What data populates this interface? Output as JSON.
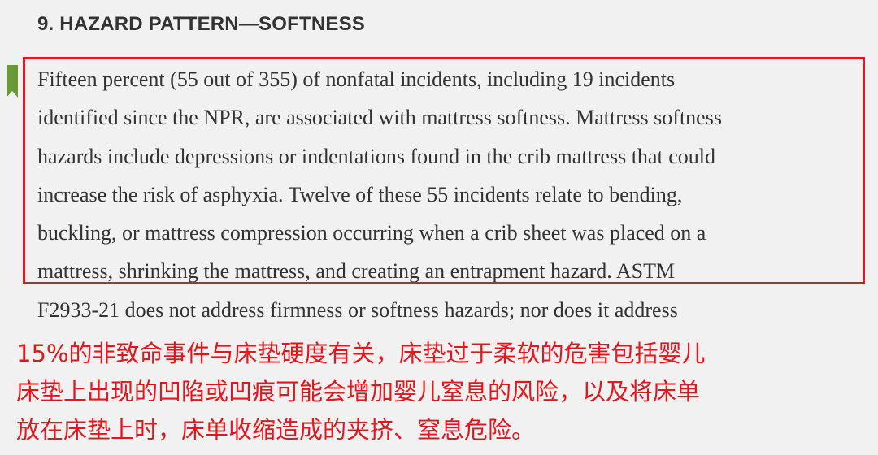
{
  "heading": "9. HAZARD PATTERN—SOFTNESS",
  "paragraph": {
    "lines": [
      "Fifteen percent (55 out of 355) of nonfatal incidents, including 19 incidents",
      "identified since the NPR, are associated with mattress softness. Mattress softness",
      "hazards include depressions or indentations found in the crib mattress that could",
      "increase the risk of asphyxia. Twelve of these 55 incidents relate to bending,",
      "buckling, or mattress compression occurring when a crib sheet was placed on a",
      "mattress, shrinking the mattress, and creating an entrapment hazard. ASTM",
      "F2933-21 does not address firmness or softness hazards; nor does it address"
    ]
  },
  "annotation": {
    "lines": [
      "15%的非致命事件与床垫硬度有关，床垫过于柔软的危害包括婴儿",
      "床垫上出现的凹陷或凹痕可能会增加婴儿窒息的风险，以及将床单",
      "放在床垫上时，床单收缩造成的夹挤、窒息危险。"
    ]
  }
}
